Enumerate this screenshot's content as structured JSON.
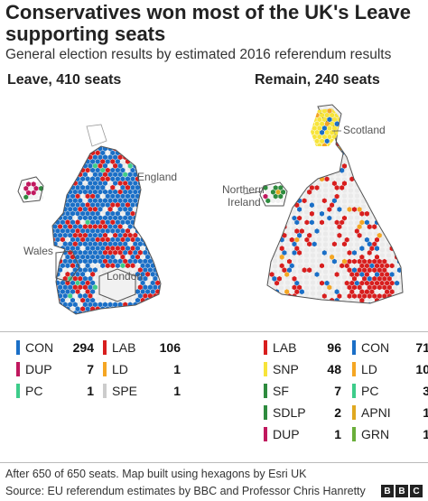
{
  "title": "Conservatives won most of the UK's Leave supporting seats",
  "subtitle": "General election results by estimated 2016 referendum results",
  "panels": {
    "leave": {
      "heading": "Leave, 410 seats",
      "labels": {
        "england": "England",
        "wales": "Wales",
        "london": "London"
      }
    },
    "remain": {
      "heading": "Remain, 240 seats",
      "labels": {
        "scotland": "Scotland",
        "northern_ireland_line1": "Northern",
        "northern_ireland_line2": "Ireland"
      }
    }
  },
  "party_colors": {
    "CON": "#1a6fc7",
    "LAB": "#d81e1e",
    "DUP": "#c0185e",
    "LD": "#f5a623",
    "PC": "#3dcc8a",
    "SPE": "#cccccc",
    "SNP": "#f7e43a",
    "SF": "#2e8b3e",
    "SDLP": "#2e8b3e",
    "APNI": "#e0a820",
    "GRN": "#6aae3a",
    "empty": "#f1f1f1"
  },
  "legend_leave": [
    {
      "party": "CON",
      "seats": "294"
    },
    {
      "party": "LAB",
      "seats": "106"
    },
    {
      "party": "DUP",
      "seats": "7"
    },
    {
      "party": "LD",
      "seats": "1"
    },
    {
      "party": "PC",
      "seats": "1"
    },
    {
      "party": "SPE",
      "seats": "1"
    }
  ],
  "legend_remain": [
    {
      "party": "LAB",
      "seats": "96"
    },
    {
      "party": "CON",
      "seats": "71"
    },
    {
      "party": "SNP",
      "seats": "48"
    },
    {
      "party": "LD",
      "seats": "10"
    },
    {
      "party": "SF",
      "seats": "7"
    },
    {
      "party": "PC",
      "seats": "3"
    },
    {
      "party": "SDLP",
      "seats": "2"
    },
    {
      "party": "APNI",
      "seats": "1"
    },
    {
      "party": "DUP",
      "seats": "1"
    },
    {
      "party": "GRN",
      "seats": "1"
    }
  ],
  "footnote": "After 650 of 650 seats. Map built using hexagons by Esri UK",
  "source": "Source: EU referendum estimates by BBC and Professor Chris Hanretty",
  "logo": [
    "B",
    "B",
    "C"
  ]
}
